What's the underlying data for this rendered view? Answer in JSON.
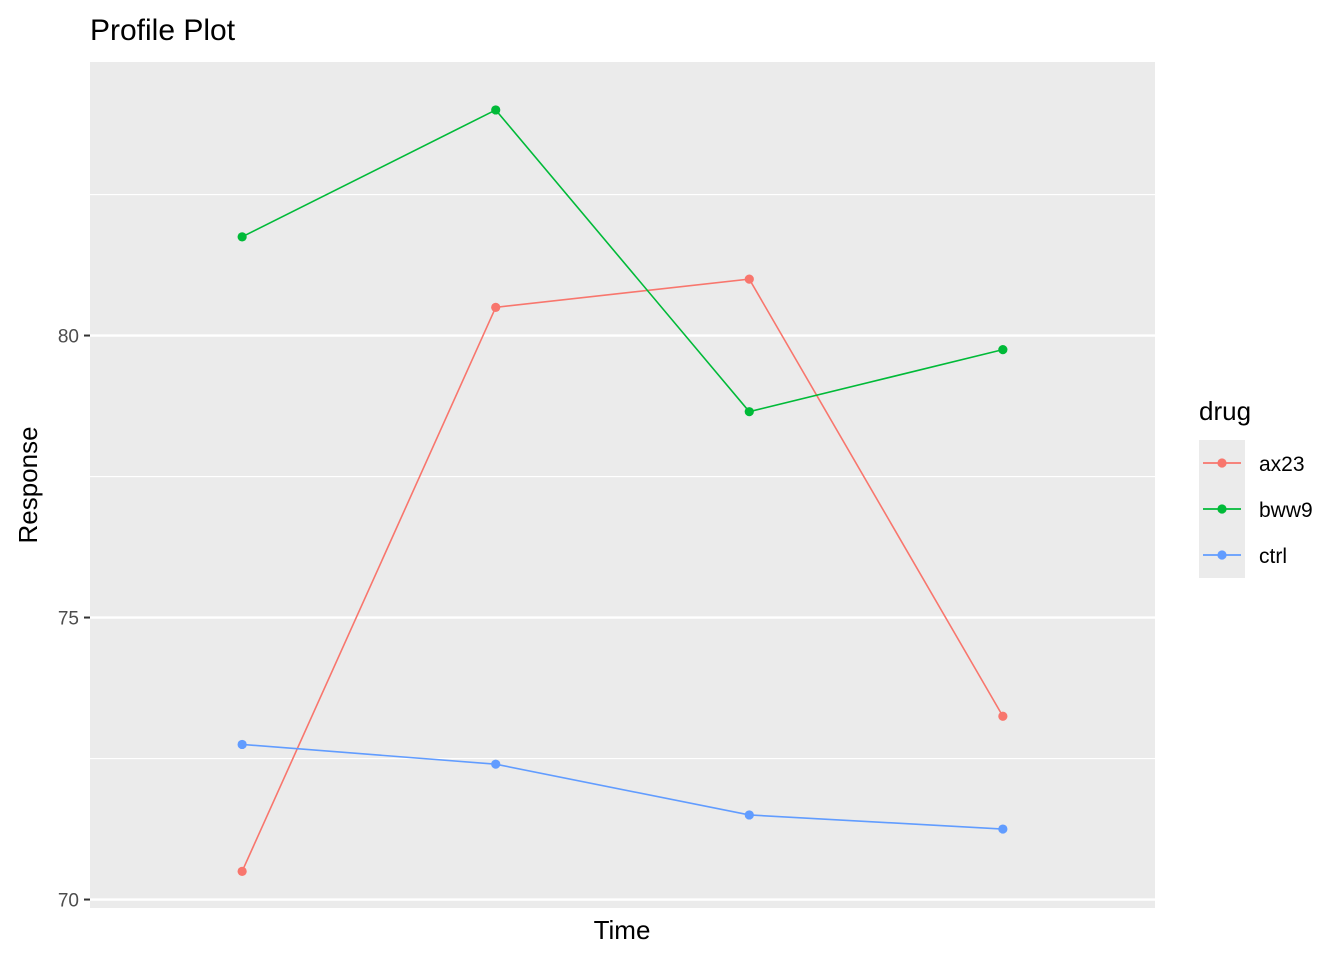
{
  "chart_data": {
    "type": "line",
    "title": "Profile Plot",
    "xlabel": "Time",
    "ylabel": "Response",
    "x": [
      1,
      2,
      3,
      4
    ],
    "xlim": [
      0.4,
      4.6
    ],
    "ylim": [
      69.85,
      84.85
    ],
    "yticks": [
      70,
      75,
      80
    ],
    "grid": true,
    "background": "#ebebeb",
    "legend": {
      "title": "drug",
      "position": "right"
    },
    "series": [
      {
        "name": "ax23",
        "color": "#f8766d",
        "values": [
          70.5,
          80.5,
          81.0,
          73.25
        ]
      },
      {
        "name": "bww9",
        "color": "#00ba38",
        "values": [
          81.75,
          84.0,
          78.65,
          79.75
        ]
      },
      {
        "name": "ctrl",
        "color": "#619cff",
        "values": [
          72.75,
          72.4,
          71.5,
          71.25
        ]
      }
    ]
  }
}
